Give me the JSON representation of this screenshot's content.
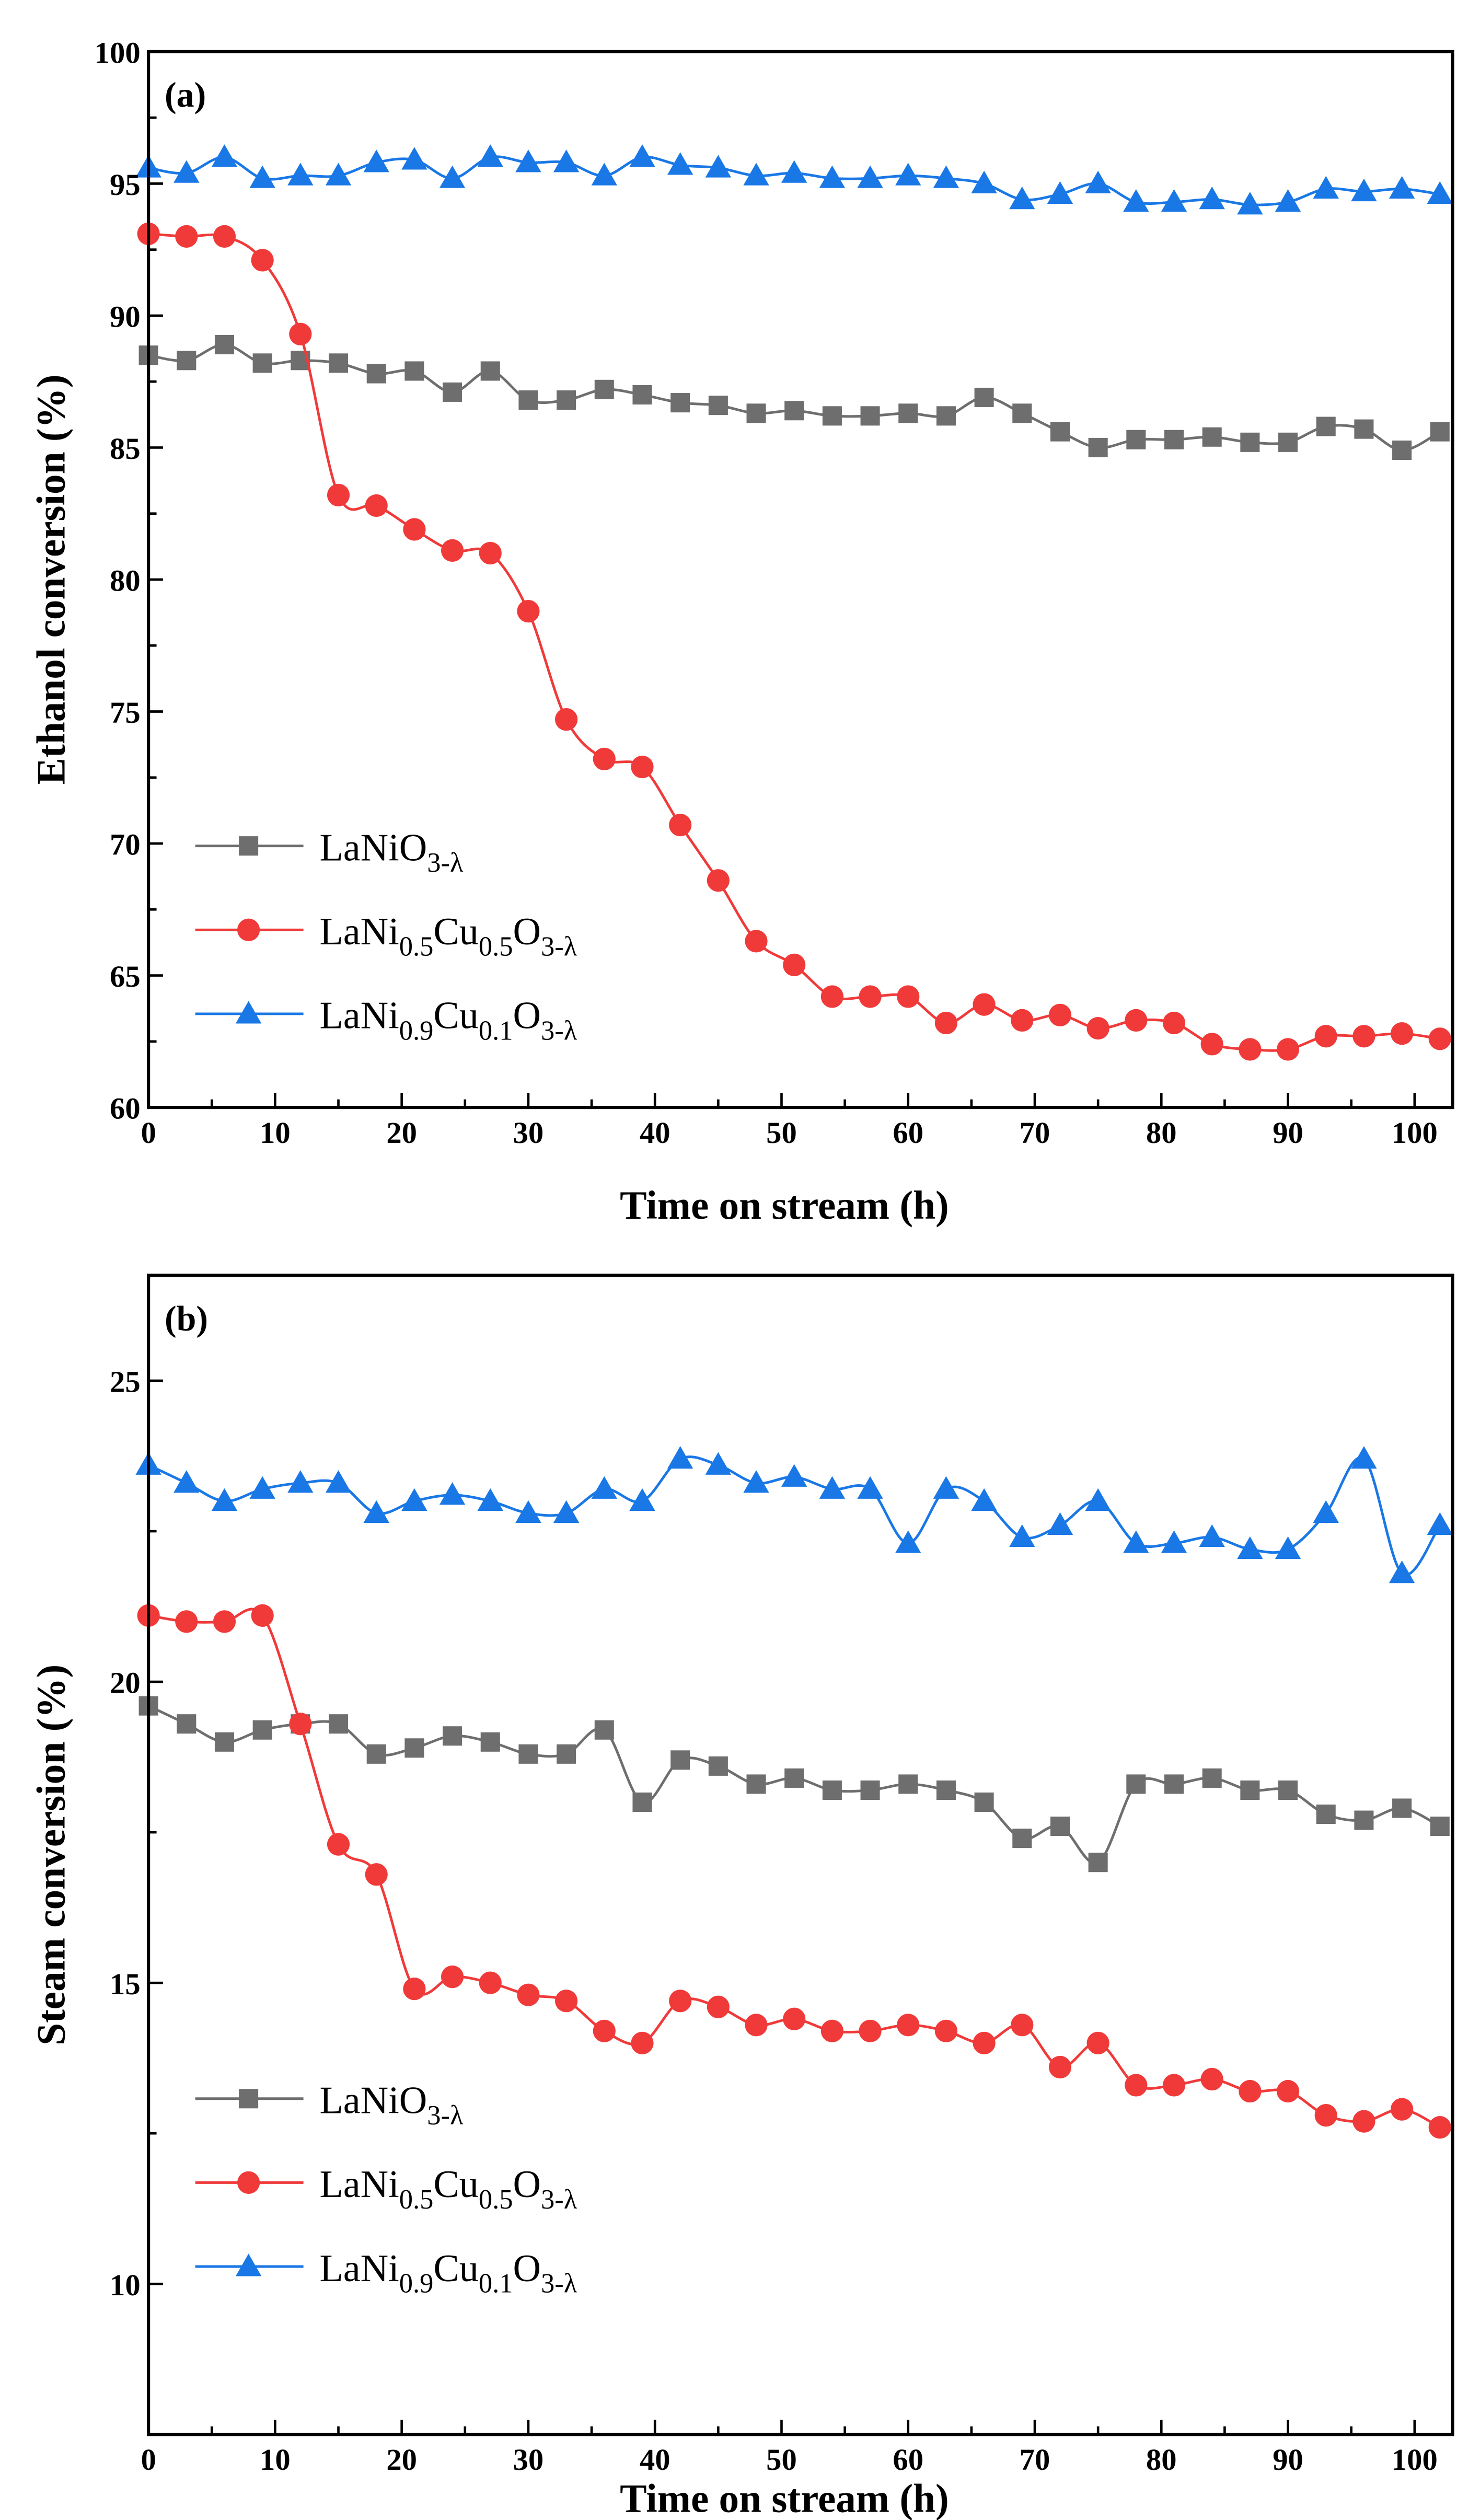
{
  "colors": {
    "gray": "#6e6e6e",
    "red": "#f03a3a",
    "blue": "#1a78e6",
    "axis": "#000000"
  },
  "chart_data": [
    {
      "type": "line",
      "panel_label": "(a)",
      "xlabel": "Time on stream (h)",
      "ylabel": "Ethanol conversion (%)",
      "xlim": [
        0,
        103
      ],
      "ylim": [
        60,
        100
      ],
      "xticks": [
        0,
        10,
        20,
        30,
        40,
        50,
        60,
        70,
        80,
        90,
        100
      ],
      "yticks": [
        60,
        65,
        70,
        75,
        80,
        85,
        90,
        95,
        100
      ],
      "grid": false,
      "legend_position": "bottom-left",
      "x": [
        0,
        3,
        6,
        9,
        12,
        15,
        18,
        21,
        24,
        27,
        30,
        33,
        36,
        39,
        42,
        45,
        48,
        51,
        54,
        57,
        60,
        63,
        66,
        69,
        72,
        75,
        78,
        81,
        84,
        87,
        90,
        93,
        96,
        99,
        102
      ],
      "series": [
        {
          "name": "LaNiO3-λ",
          "label_parts": [
            [
              "LaNiO",
              false
            ],
            [
              "3-λ",
              true
            ]
          ],
          "color_key": "gray",
          "marker": "square",
          "values": [
            88.5,
            88.3,
            88.9,
            88.2,
            88.3,
            88.2,
            87.8,
            87.9,
            87.1,
            87.9,
            86.8,
            86.8,
            87.2,
            87.0,
            86.7,
            86.6,
            86.3,
            86.4,
            86.2,
            86.2,
            86.3,
            86.2,
            86.9,
            86.3,
            85.6,
            85.0,
            85.3,
            85.3,
            85.4,
            85.2,
            85.2,
            85.8,
            85.7,
            84.9,
            85.6
          ]
        },
        {
          "name": "LaNi0.5Cu0.5O3-λ",
          "label_parts": [
            [
              "LaNi",
              false
            ],
            [
              "0.5",
              true
            ],
            [
              "Cu",
              false
            ],
            [
              "0.5",
              true
            ],
            [
              "O",
              false
            ],
            [
              "3-λ",
              true
            ]
          ],
          "color_key": "red",
          "marker": "circle",
          "values": [
            93.1,
            93.0,
            93.0,
            92.1,
            89.3,
            83.2,
            82.8,
            81.9,
            81.1,
            81.0,
            78.8,
            74.7,
            73.2,
            72.9,
            70.7,
            68.6,
            66.3,
            65.4,
            64.2,
            64.2,
            64.2,
            63.2,
            63.9,
            63.3,
            63.5,
            63.0,
            63.3,
            63.2,
            62.4,
            62.2,
            62.2,
            62.7,
            62.7,
            62.8,
            62.6
          ]
        },
        {
          "name": "LaNi0.9Cu0.1O3-λ",
          "label_parts": [
            [
              "LaNi",
              false
            ],
            [
              "0.9",
              true
            ],
            [
              "Cu",
              false
            ],
            [
              "0.1",
              true
            ],
            [
              "O",
              false
            ],
            [
              "3-λ",
              true
            ]
          ],
          "color_key": "blue",
          "marker": "triangle",
          "values": [
            95.6,
            95.4,
            96.0,
            95.2,
            95.3,
            95.3,
            95.8,
            95.9,
            95.2,
            96.0,
            95.8,
            95.8,
            95.3,
            96.0,
            95.7,
            95.6,
            95.3,
            95.4,
            95.2,
            95.2,
            95.3,
            95.2,
            95.0,
            94.4,
            94.6,
            95.0,
            94.3,
            94.3,
            94.4,
            94.2,
            94.3,
            94.8,
            94.7,
            94.8,
            94.6
          ]
        }
      ]
    },
    {
      "type": "line",
      "panel_label": "(b)",
      "xlabel": "Time on stream (h)",
      "ylabel": "Steam conversion (%)",
      "xlim": [
        0,
        103
      ],
      "ylim": [
        7.5,
        26.75
      ],
      "xticks": [
        0,
        10,
        20,
        30,
        40,
        50,
        60,
        70,
        80,
        90,
        100
      ],
      "yticks": [
        10,
        15,
        20,
        25
      ],
      "grid": false,
      "legend_position": "bottom-left",
      "x": [
        0,
        3,
        6,
        9,
        12,
        15,
        18,
        21,
        24,
        27,
        30,
        33,
        36,
        39,
        42,
        45,
        48,
        51,
        54,
        57,
        60,
        63,
        66,
        69,
        72,
        75,
        78,
        81,
        84,
        87,
        90,
        93,
        96,
        99,
        102
      ],
      "series": [
        {
          "name": "LaNiO3-λ",
          "label_parts": [
            [
              "LaNiO",
              false
            ],
            [
              "3-λ",
              true
            ]
          ],
          "color_key": "gray",
          "marker": "square",
          "values": [
            19.6,
            19.3,
            19.0,
            19.2,
            19.3,
            19.3,
            18.8,
            18.9,
            19.1,
            19.0,
            18.8,
            18.8,
            19.2,
            18.0,
            18.7,
            18.6,
            18.3,
            18.4,
            18.2,
            18.2,
            18.3,
            18.2,
            18.0,
            17.4,
            17.6,
            17.0,
            18.3,
            18.3,
            18.4,
            18.2,
            18.2,
            17.8,
            17.7,
            17.9,
            17.6
          ]
        },
        {
          "name": "LaNi0.5Cu0.5O3-λ",
          "label_parts": [
            [
              "LaNi",
              false
            ],
            [
              "0.5",
              true
            ],
            [
              "Cu",
              false
            ],
            [
              "0.5",
              true
            ],
            [
              "O",
              false
            ],
            [
              "3-λ",
              true
            ]
          ],
          "color_key": "red",
          "marker": "circle",
          "values": [
            21.1,
            21.0,
            21.0,
            21.1,
            19.3,
            17.3,
            16.8,
            14.9,
            15.1,
            15.0,
            14.8,
            14.7,
            14.2,
            14.0,
            14.7,
            14.6,
            14.3,
            14.4,
            14.2,
            14.2,
            14.3,
            14.2,
            14.0,
            14.3,
            13.6,
            14.0,
            13.3,
            13.3,
            13.4,
            13.2,
            13.2,
            12.8,
            12.7,
            12.9,
            12.6
          ]
        },
        {
          "name": "LaNi0.9Cu0.1O3-λ",
          "label_parts": [
            [
              "LaNi",
              false
            ],
            [
              "0.9",
              true
            ],
            [
              "Cu",
              false
            ],
            [
              "0.1",
              true
            ],
            [
              "O",
              false
            ],
            [
              "3-λ",
              true
            ]
          ],
          "color_key": "blue",
          "marker": "triangle",
          "values": [
            23.6,
            23.3,
            23.0,
            23.2,
            23.3,
            23.3,
            22.8,
            23.0,
            23.1,
            23.0,
            22.8,
            22.8,
            23.2,
            23.0,
            23.7,
            23.6,
            23.3,
            23.4,
            23.2,
            23.2,
            22.3,
            23.2,
            23.0,
            22.4,
            22.6,
            23.0,
            22.3,
            22.3,
            22.4,
            22.2,
            22.2,
            22.8,
            23.7,
            21.8,
            22.6
          ]
        }
      ]
    }
  ]
}
